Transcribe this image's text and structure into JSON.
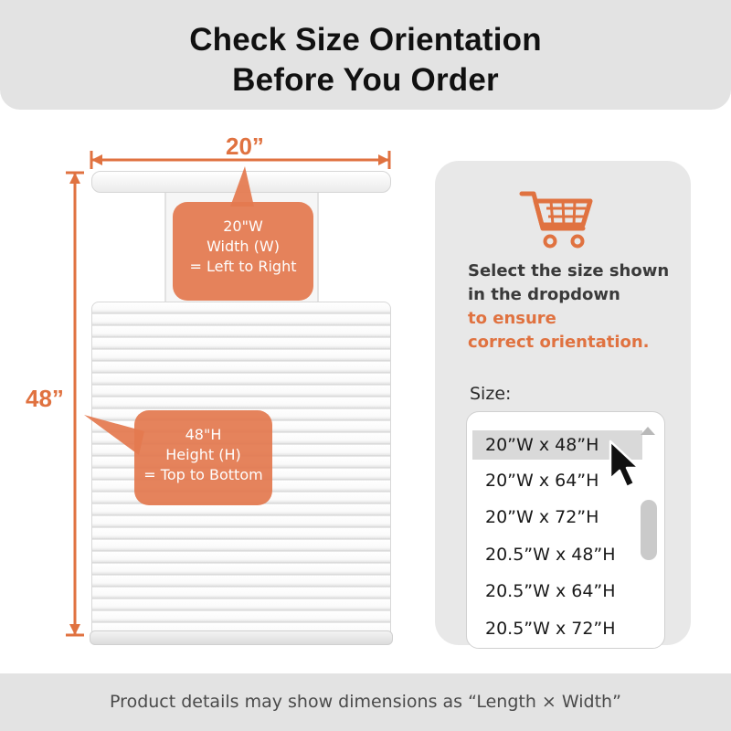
{
  "header": {
    "title_line1": "Check Size Orientation",
    "title_line2": "Before You Order"
  },
  "dimensions": {
    "width_label": "20”",
    "height_label": "48”"
  },
  "width_bubble": {
    "line1": "20\"W",
    "line2": "Width (W)",
    "line3": "= Left to Right"
  },
  "height_bubble": {
    "line1": "48\"H",
    "line2": "Height (H)",
    "line3": "= Top to Bottom"
  },
  "panel": {
    "text_line1": "Select the size shown",
    "text_line2": "in the dropdown",
    "highlight_line1": "to ensure",
    "highlight_line2": "correct orientation.",
    "size_label": "Size:",
    "icon": "shopping-cart-icon",
    "options": [
      "20”W x 48”H",
      "20”W x 64”H",
      "20”W x 72”H",
      "20.5”W x 48”H",
      "20.5”W x 64”H",
      "20.5”W x 72”H"
    ],
    "selected_option": "20”W x 48”H"
  },
  "footer": {
    "note": "Product details may show dimensions as “Length × Width”"
  },
  "colors": {
    "accent": "#e07240",
    "bubble": "#e47a50",
    "header_bg": "#e3e3e3",
    "panel_bg": "#e8e8e8"
  }
}
